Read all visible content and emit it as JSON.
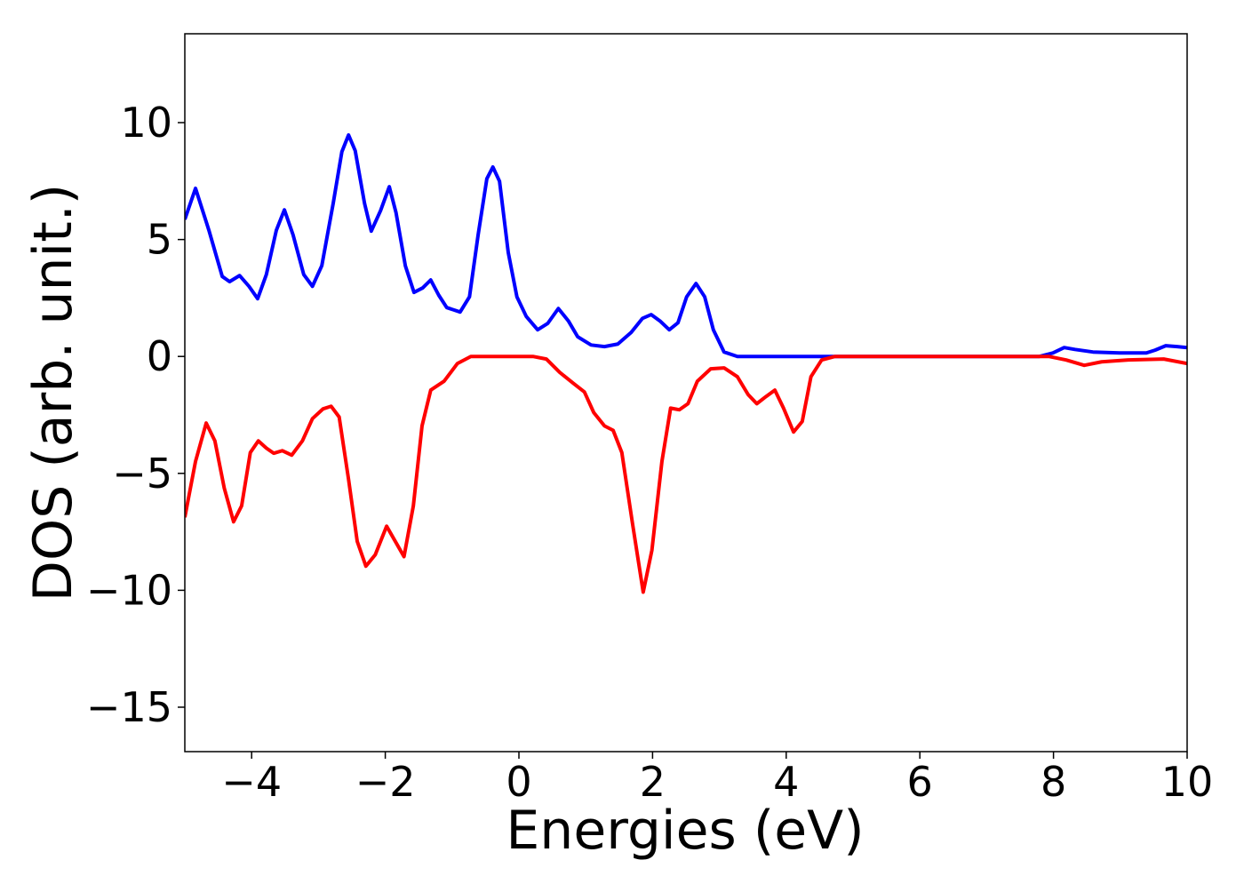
{
  "chart_data": {
    "type": "line",
    "x_label": "Energies (eV)",
    "y_label": "DOS (arb. unit.)",
    "xlim": [
      -5,
      10
    ],
    "ylim": [
      -16.9,
      13.8
    ],
    "xticks": [
      {
        "value": -4,
        "label": "−4"
      },
      {
        "value": -2,
        "label": "−2"
      },
      0,
      2,
      4,
      6,
      8,
      10
    ],
    "yticks": [
      {
        "value": -15,
        "label": "−15"
      },
      {
        "value": -10,
        "label": "−10"
      },
      {
        "value": -5,
        "label": "−5"
      },
      0,
      5,
      10
    ],
    "grid": false,
    "series": [
      {
        "color": "#0000ff",
        "x": [
          -5,
          -4.84,
          -4.64,
          -4.44,
          -4.33,
          -4.18,
          -4.04,
          -3.91,
          -3.78,
          -3.63,
          -3.51,
          -3.38,
          -3.22,
          -3.09,
          -2.95,
          -2.78,
          -2.65,
          -2.55,
          -2.45,
          -2.31,
          -2.21,
          -2.07,
          -1.94,
          -1.84,
          -1.7,
          -1.57,
          -1.44,
          -1.32,
          -1.2,
          -1.08,
          -0.88,
          -0.74,
          -0.61,
          -0.48,
          -0.39,
          -0.29,
          -0.16,
          -0.03,
          0.11,
          0.28,
          0.43,
          0.59,
          0.74,
          0.88,
          1.08,
          1.28,
          1.48,
          1.68,
          1.85,
          1.98,
          2.11,
          2.25,
          2.38,
          2.51,
          2.65,
          2.78,
          2.91,
          3.07,
          3.27,
          4.2,
          5.53,
          6.86,
          7.79,
          7.99,
          8.16,
          8.32,
          8.59,
          8.99,
          9.39,
          9.52,
          9.68,
          9.85,
          10
        ],
        "values": [
          5.86,
          7.19,
          5.4,
          3.42,
          3.2,
          3.46,
          3.0,
          2.47,
          3.5,
          5.4,
          6.27,
          5.2,
          3.5,
          3.0,
          3.88,
          6.54,
          8.75,
          9.47,
          8.8,
          6.54,
          5.36,
          6.24,
          7.26,
          6.16,
          3.88,
          2.74,
          2.93,
          3.27,
          2.62,
          2.09,
          1.9,
          2.55,
          5.21,
          7.6,
          8.1,
          7.49,
          4.45,
          2.55,
          1.71,
          1.14,
          1.41,
          2.05,
          1.52,
          0.84,
          0.49,
          0.42,
          0.53,
          1.03,
          1.63,
          1.79,
          1.52,
          1.14,
          1.44,
          2.55,
          3.12,
          2.55,
          1.14,
          0.19,
          0,
          0,
          0,
          0,
          0,
          0.15,
          0.38,
          0.3,
          0.19,
          0.15,
          0.15,
          0.27,
          0.46,
          0.42,
          0.38
        ]
      },
      {
        "color": "#ff0000",
        "x": [
          -5,
          -4.84,
          -4.68,
          -4.55,
          -4.41,
          -4.27,
          -4.15,
          -4.02,
          -3.9,
          -3.78,
          -3.67,
          -3.54,
          -3.4,
          -3.24,
          -3.09,
          -2.93,
          -2.81,
          -2.69,
          -2.55,
          -2.42,
          -2.29,
          -2.15,
          -1.98,
          -1.85,
          -1.72,
          -1.58,
          -1.45,
          -1.32,
          -1.12,
          -0.92,
          -0.72,
          0.21,
          0.41,
          0.61,
          0.81,
          0.98,
          1.12,
          1.28,
          1.41,
          1.54,
          1.7,
          1.86,
          1.99,
          2.14,
          2.27,
          2.4,
          2.53,
          2.67,
          2.87,
          3.07,
          3.27,
          3.43,
          3.56,
          3.7,
          3.83,
          3.96,
          4.11,
          4.24,
          4.37,
          4.53,
          4.73,
          7.93,
          8.19,
          8.46,
          8.72,
          9.12,
          9.65,
          10
        ],
        "values": [
          -6.88,
          -4.49,
          -2.85,
          -3.61,
          -5.63,
          -7.07,
          -6.39,
          -4.11,
          -3.61,
          -3.92,
          -4.14,
          -4.03,
          -4.22,
          -3.61,
          -2.66,
          -2.24,
          -2.13,
          -2.59,
          -5.25,
          -7.91,
          -8.97,
          -8.48,
          -7.26,
          -7.91,
          -8.56,
          -6.39,
          -2.97,
          -1.44,
          -1.06,
          -0.3,
          0,
          0,
          -0.11,
          -0.68,
          -1.14,
          -1.52,
          -2.4,
          -2.97,
          -3.16,
          -4.11,
          -7.15,
          -10.08,
          -8.29,
          -4.49,
          -2.21,
          -2.28,
          -2.02,
          -1.06,
          -0.53,
          -0.49,
          -0.87,
          -1.63,
          -2.02,
          -1.71,
          -1.44,
          -2.21,
          -3.23,
          -2.78,
          -0.87,
          -0.15,
          0,
          0,
          -0.15,
          -0.38,
          -0.23,
          -0.15,
          -0.11,
          -0.3
        ]
      }
    ]
  }
}
